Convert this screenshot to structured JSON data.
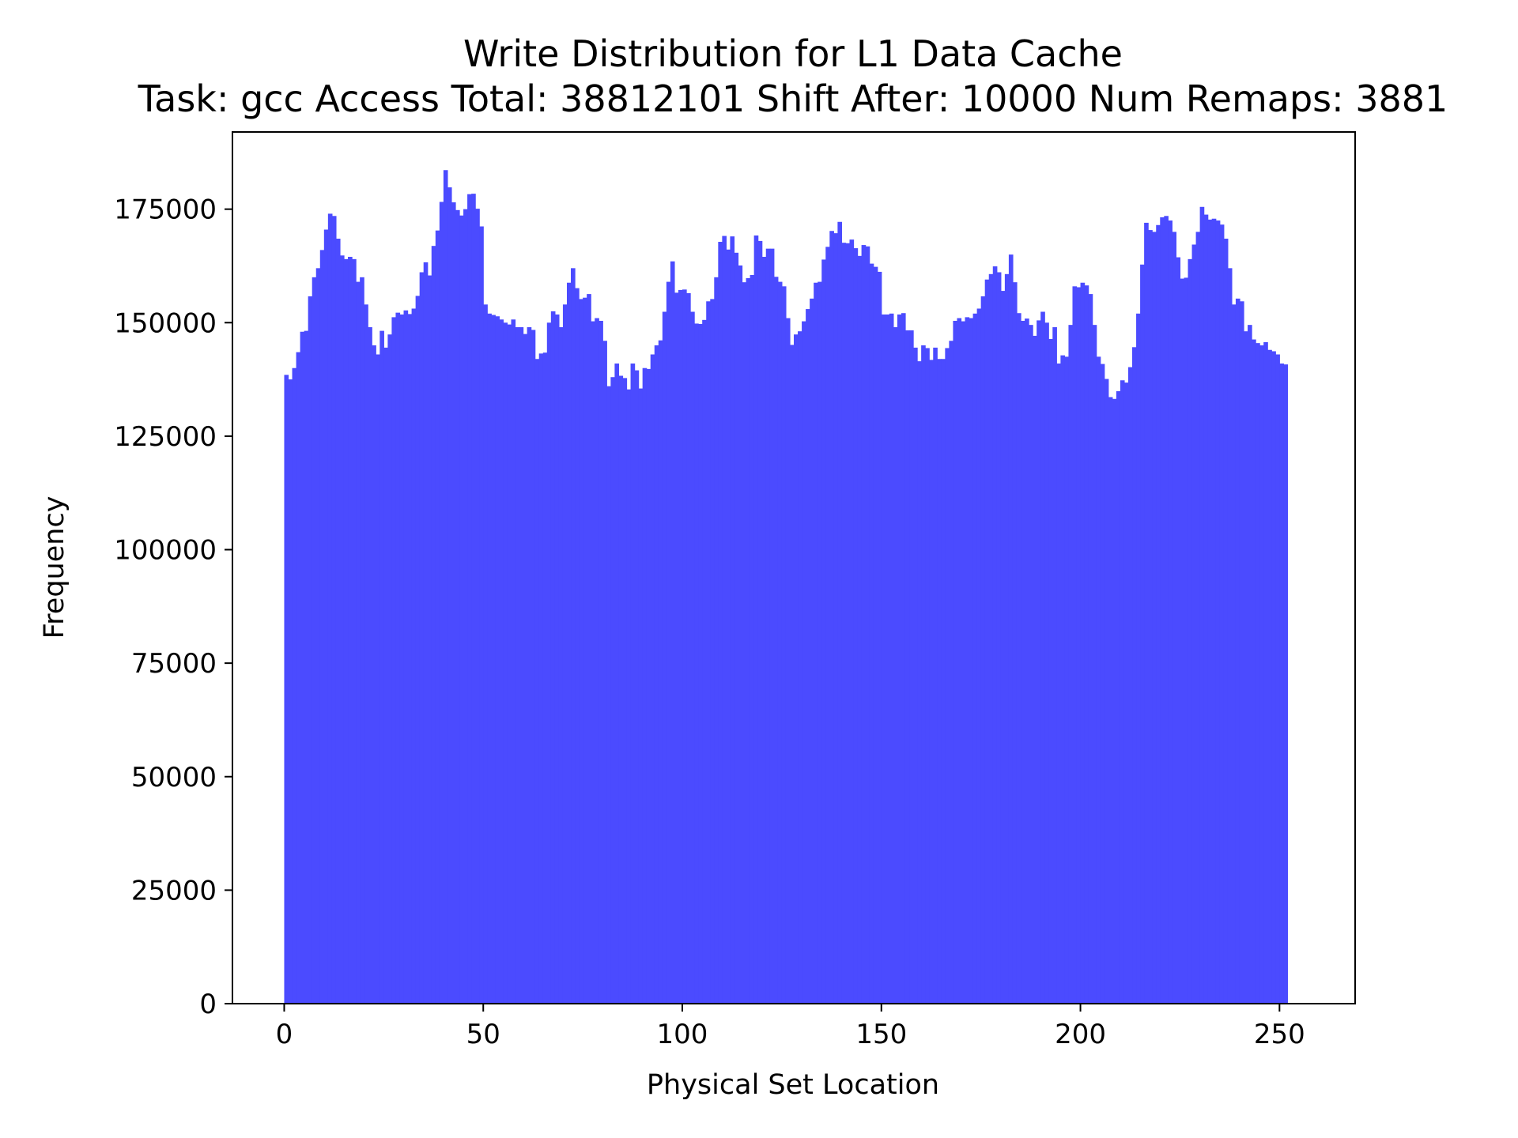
{
  "chart_data": {
    "type": "bar",
    "title": "Write Distribution for L1 Data Cache",
    "subtitle": "Task: gcc Access Total: 38812101 Shift After: 10000 Num Remaps: 3881",
    "xlabel": "Physical Set Location",
    "ylabel": "Frequency",
    "xlim": [
      -13,
      269
    ],
    "ylim": [
      0,
      192000
    ],
    "xticks": [
      0,
      50,
      100,
      150,
      200,
      250
    ],
    "xtick_labels": [
      "0",
      "50",
      "100",
      "150",
      "200",
      "250"
    ],
    "yticks": [
      0,
      25000,
      50000,
      75000,
      100000,
      125000,
      150000,
      175000
    ],
    "ytick_labels": [
      "0",
      "25000",
      "50000",
      "75000",
      "100000",
      "125000",
      "150000",
      "175000"
    ],
    "bar_color": "#4b4bff",
    "grid": false,
    "bin_width": 1,
    "x_start": 0,
    "values": [
      138500,
      137500,
      140000,
      143500,
      148000,
      148200,
      155800,
      160000,
      162000,
      166000,
      170500,
      174000,
      173500,
      168500,
      164800,
      164000,
      164500,
      164000,
      159000,
      160000,
      154000,
      149000,
      145000,
      143000,
      148200,
      144500,
      147400,
      151200,
      152200,
      151800,
      152700,
      151900,
      153100,
      155900,
      161100,
      163300,
      160400,
      166900,
      170300,
      176600,
      183600,
      179800,
      176500,
      174800,
      173600,
      175000,
      178300,
      178400,
      175100,
      171200,
      154000,
      152000,
      151700,
      151400,
      150700,
      150000,
      149600,
      150700,
      149000,
      149000,
      147500,
      149000,
      148400,
      142000,
      143200,
      143400,
      150000,
      152500,
      151800,
      149000,
      154000,
      158800,
      162000,
      157600,
      155200,
      155500,
      156300,
      150300,
      151000,
      150400,
      146000,
      136000,
      138000,
      141000,
      138300,
      137800,
      135300,
      141000,
      139500,
      135500,
      140000,
      139800,
      143000,
      145000,
      146100,
      152400,
      159000,
      163500,
      156600,
      157200,
      157300,
      156500,
      152400,
      149800,
      149700,
      150600,
      154700,
      155200,
      160000,
      167800,
      169100,
      166100,
      169000,
      165400,
      162600,
      158900,
      159800,
      160500,
      169200,
      168000,
      164500,
      166300,
      166300,
      160100,
      159000,
      158000,
      151000,
      145100,
      147400,
      148100,
      150300,
      153000,
      155300,
      158800,
      159000,
      163900,
      166700,
      170200,
      169700,
      172200,
      167600,
      167500,
      168300,
      166400,
      164700,
      167100,
      166800,
      163000,
      162300,
      161200,
      151800,
      151800,
      152000,
      149000,
      151800,
      152100,
      148300,
      148300,
      144500,
      141500,
      145000,
      144400,
      141800,
      144500,
      142000,
      142000,
      144400,
      146000,
      150400,
      151000,
      150300,
      151200,
      151000,
      152000,
      153100,
      155800,
      159500,
      160700,
      162400,
      161100,
      157000,
      160700,
      165000,
      158900,
      152100,
      150400,
      150900,
      149500,
      147100,
      150500,
      152400,
      150000,
      146400,
      149000,
      141000,
      142800,
      142500,
      149500,
      158000,
      157800,
      158800,
      158200,
      156300,
      149500,
      142500,
      140900,
      137600,
      133600,
      133200,
      134900,
      137300,
      136800,
      140200,
      144600,
      152000,
      162800,
      172000,
      170400,
      170000,
      171500,
      173200,
      173500,
      172500,
      170000,
      164400,
      159700,
      159900,
      164000,
      167200,
      170000,
      175500,
      173800,
      172700,
      172900,
      172500,
      171600,
      168500,
      162000,
      154000,
      155300,
      154700,
      148100,
      149500,
      146300,
      145500,
      145000,
      145700,
      144000,
      143700,
      143000,
      141000,
      140800
    ]
  }
}
